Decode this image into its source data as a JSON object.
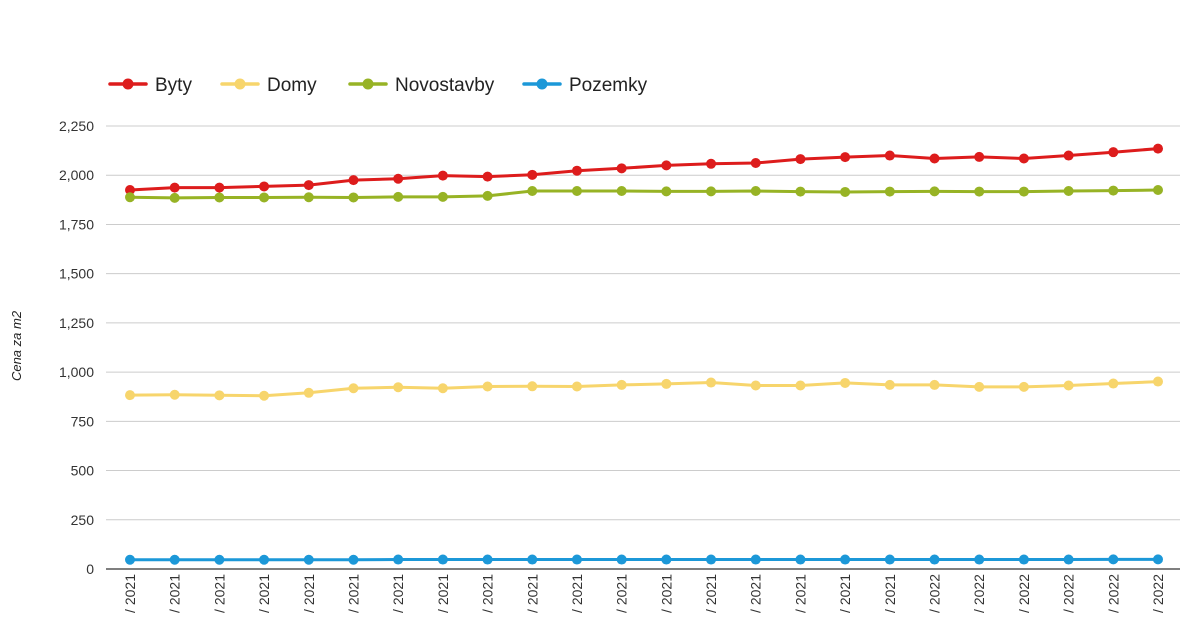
{
  "chart_data": {
    "type": "line",
    "ylabel": "Cena za m2",
    "xlabel": "",
    "ylim": [
      0,
      2250
    ],
    "yticks": [
      "0",
      "250",
      "500",
      "750",
      "1,000",
      "1,250",
      "1,500",
      "1,750",
      "2,000",
      "2,250"
    ],
    "ytick_values": [
      0,
      250,
      500,
      750,
      1000,
      1250,
      1500,
      1750,
      2000,
      2250
    ],
    "grid": true,
    "legend_position": "top-left",
    "categories": [
      "/ 2021",
      "/ 2021",
      "/ 2021",
      "/ 2021",
      "/ 2021",
      "/ 2021",
      "/ 2021",
      "/ 2021",
      "/ 2021",
      "/ 2021",
      "/ 2021",
      "/ 2021",
      "/ 2021",
      "/ 2021",
      "/ 2021",
      "/ 2021",
      "/ 2021",
      "/ 2021",
      "/ 2022",
      "/ 2022",
      "/ 2022",
      "/ 2022",
      "/ 2022",
      "/ 2022"
    ],
    "series": [
      {
        "name": "Byty",
        "color": "#dd1c1c",
        "values": [
          1925,
          1937,
          1937,
          1943,
          1950,
          1975,
          1982,
          1998,
          1993,
          2002,
          2023,
          2035,
          2050,
          2058,
          2062,
          2082,
          2092,
          2100,
          2085,
          2093,
          2085,
          2100,
          2117,
          2135
        ]
      },
      {
        "name": "Domy",
        "color": "#f7d56c",
        "values": [
          883,
          885,
          882,
          880,
          895,
          918,
          923,
          918,
          927,
          928,
          927,
          935,
          940,
          947,
          932,
          932,
          945,
          935,
          935,
          925,
          925,
          932,
          942,
          952
        ]
      },
      {
        "name": "Novostavby",
        "color": "#97b325",
        "values": [
          1888,
          1885,
          1887,
          1887,
          1888,
          1887,
          1890,
          1890,
          1895,
          1920,
          1920,
          1920,
          1918,
          1918,
          1920,
          1917,
          1915,
          1917,
          1918,
          1917,
          1917,
          1920,
          1922,
          1925
        ]
      },
      {
        "name": "Pozemky",
        "color": "#1c98d8",
        "values": [
          47,
          47,
          47,
          47,
          47,
          47,
          48,
          48,
          48,
          48,
          48,
          48,
          48,
          48,
          48,
          48,
          48,
          48,
          48,
          48,
          48,
          48,
          49,
          49
        ]
      }
    ]
  }
}
